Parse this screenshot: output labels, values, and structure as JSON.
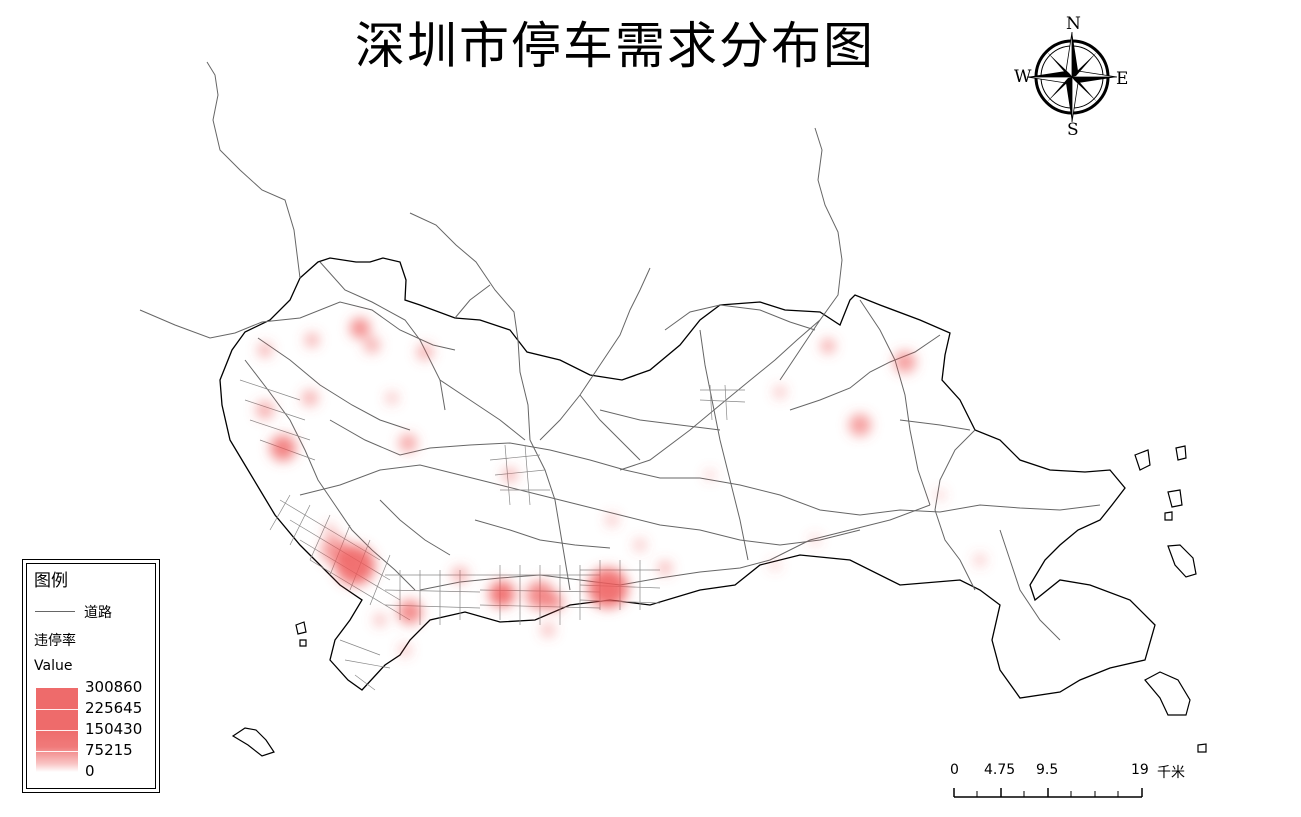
{
  "title": "深圳市停车需求分布图",
  "compass": {
    "north": "N",
    "south": "S",
    "east": "E",
    "west": "W",
    "icon": "compass-rose-icon"
  },
  "legend": {
    "title": "图例",
    "road_label": "道路",
    "layer_label": "违停率",
    "field_label": "Value",
    "classes": [
      "300860",
      "225645",
      "150430",
      "75215",
      "0"
    ],
    "ramp_colors": [
      "#ee6b6b",
      "#ffffff"
    ]
  },
  "scalebar": {
    "labels": [
      "0",
      "4.75",
      "9.5",
      "19"
    ],
    "unit": "千米"
  },
  "colors": {
    "road": "#666666",
    "heat": "#ee5a5a",
    "coast": "#000000"
  }
}
